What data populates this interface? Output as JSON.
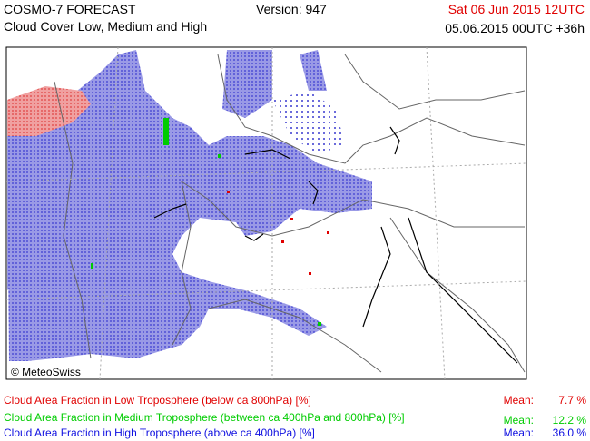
{
  "header": {
    "model": "COSMO-7 FORECAST",
    "subtitle": "Cloud Cover Low, Medium and High",
    "version": "Version: 947",
    "valid_time": "Sat 06 Jun 2015 12UTC",
    "run_time": "05.06.2015 00UTC +36h"
  },
  "map": {
    "copyright": "© MeteoSwiss"
  },
  "legend": [
    {
      "label": "Cloud Area Fraction in Low Troposphere (below ca 800hPa) [%]",
      "mean_label": "Mean:",
      "mean": "7.7 %",
      "color": "#e00000"
    },
    {
      "label": "Cloud Area Fraction in Medium Troposphere (between ca 400hPa and 800hPa) [%]",
      "mean_label": "Mean:",
      "mean": "12.2 %",
      "color": "#00cc00"
    },
    {
      "label": "Cloud Area Fraction in High Troposphere (above ca 400hPa) [%]",
      "mean_label": "Mean:",
      "mean": "36.0 %",
      "color": "#1010e0"
    }
  ]
}
